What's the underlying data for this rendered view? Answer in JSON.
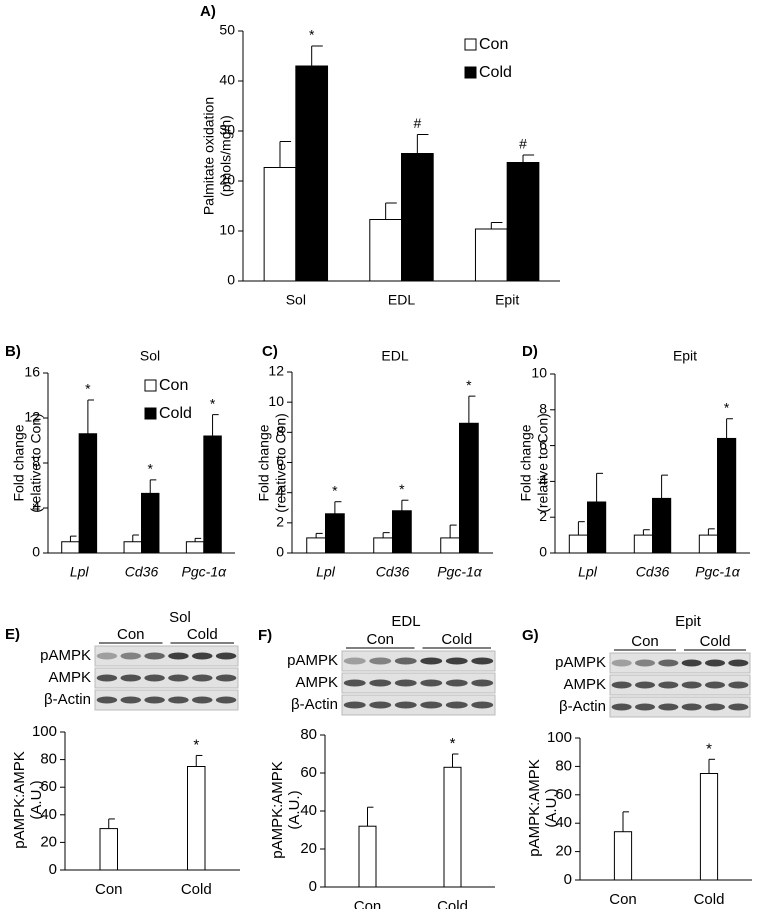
{
  "chart_data": [
    {
      "type": "bar",
      "label": "A)",
      "y_label": [
        "Palmitate oxidation",
        "(pmols/mg/h)"
      ],
      "categories": [
        "Sol",
        "EDL",
        "Epit"
      ],
      "series": [
        {
          "name": "Con",
          "color": "#ffffff",
          "values": [
            22.7,
            12.3,
            10.4
          ],
          "errors": [
            5.2,
            3.3,
            1.3
          ]
        },
        {
          "name": "Cold",
          "color": "#000000",
          "values": [
            43,
            25.5,
            23.7
          ],
          "errors": [
            4,
            3.8,
            1.5
          ],
          "annotations": [
            "*",
            "#",
            "#"
          ]
        }
      ],
      "ylim": [
        0,
        50
      ],
      "yticks": [
        0,
        10,
        20,
        30,
        40,
        50
      ],
      "legend": "top-right"
    },
    {
      "type": "bar",
      "label": "B)",
      "title": "Sol",
      "y_label": [
        "Fold change",
        "(relative to Con)"
      ],
      "categories": [
        "Lpl",
        "Cd36",
        "Pgc-1α"
      ],
      "category_style": "italic",
      "series": [
        {
          "name": "Con",
          "color": "#ffffff",
          "values": [
            1,
            1,
            1
          ],
          "errors": [
            0.5,
            0.6,
            0.3
          ]
        },
        {
          "name": "Cold",
          "color": "#000000",
          "values": [
            10.6,
            5.3,
            10.4
          ],
          "errors": [
            3,
            1.2,
            1.9
          ],
          "annotations": [
            "*",
            "*",
            "*"
          ]
        }
      ],
      "ylim": [
        0,
        16
      ],
      "yticks": [
        0,
        4,
        8,
        12,
        16
      ],
      "legend": "top-right"
    },
    {
      "type": "bar",
      "label": "C)",
      "title": "EDL",
      "y_label": [
        "Fold change",
        "(relative to Con)"
      ],
      "categories": [
        "Lpl",
        "Cd36",
        "Pgc-1α"
      ],
      "category_style": "italic",
      "series": [
        {
          "color": "#ffffff",
          "values": [
            1,
            1,
            1
          ],
          "errors": [
            0.3,
            0.35,
            0.85
          ]
        },
        {
          "color": "#000000",
          "values": [
            2.6,
            2.8,
            8.6
          ],
          "errors": [
            0.8,
            0.7,
            1.8
          ],
          "annotations": [
            "*",
            "*",
            "*"
          ]
        }
      ],
      "ylim": [
        0,
        12
      ],
      "yticks": [
        0,
        2,
        4,
        6,
        8,
        10,
        12
      ]
    },
    {
      "type": "bar",
      "label": "D)",
      "title": "Epit",
      "y_label": [
        "Fold change",
        "(relative to Con)"
      ],
      "categories": [
        "Lpl",
        "Cd36",
        "Pgc-1α"
      ],
      "category_style": "italic",
      "series": [
        {
          "color": "#ffffff",
          "values": [
            1,
            1,
            1
          ],
          "errors": [
            0.75,
            0.3,
            0.35
          ]
        },
        {
          "color": "#000000",
          "values": [
            2.85,
            3.05,
            6.4
          ],
          "errors": [
            1.6,
            1.3,
            1.1
          ],
          "annotations": [
            null,
            null,
            "*"
          ]
        }
      ],
      "ylim": [
        0,
        10
      ],
      "yticks": [
        0,
        2,
        4,
        6,
        8,
        10
      ]
    },
    {
      "type": "bar",
      "label": "E)",
      "title": "Sol",
      "blot": {
        "rows": [
          "pAMPK",
          "AMPK",
          "β-Actin"
        ],
        "groups": [
          "Con",
          "Cold"
        ]
      },
      "y_label": [
        "pAMPK:AMPK",
        "(A.U.)"
      ],
      "categories": [
        "Con",
        "Cold"
      ],
      "series": [
        {
          "color": "#ffffff",
          "values": [
            30,
            75
          ],
          "errors": [
            7,
            8
          ],
          "annotations": [
            null,
            "*"
          ]
        }
      ],
      "ylim": [
        0,
        100
      ],
      "yticks": [
        0,
        20,
        40,
        60,
        80,
        100
      ]
    },
    {
      "type": "bar",
      "label": "F)",
      "title": "EDL",
      "blot": {
        "rows": [
          "pAMPK",
          "AMPK",
          "β-Actin"
        ],
        "groups": [
          "Con",
          "Cold"
        ]
      },
      "y_label": [
        "pAMPK:AMPK",
        "(A.U.)"
      ],
      "categories": [
        "Con",
        "Cold"
      ],
      "series": [
        {
          "color": "#ffffff",
          "values": [
            32,
            63
          ],
          "errors": [
            10,
            7
          ],
          "annotations": [
            null,
            "*"
          ]
        }
      ],
      "ylim": [
        0,
        80
      ],
      "yticks": [
        0,
        20,
        40,
        60,
        80
      ]
    },
    {
      "type": "bar",
      "label": "G)",
      "title": "Epit",
      "blot": {
        "rows": [
          "pAMPK",
          "AMPK",
          "β-Actin"
        ],
        "groups": [
          "Con",
          "Cold"
        ]
      },
      "y_label": [
        "pAMPK:AMPK",
        "(A.U.)"
      ],
      "categories": [
        "Con",
        "Cold"
      ],
      "series": [
        {
          "color": "#ffffff",
          "values": [
            34,
            75
          ],
          "errors": [
            14,
            10
          ],
          "annotations": [
            null,
            "*"
          ]
        }
      ],
      "ylim": [
        0,
        100
      ],
      "yticks": [
        0,
        20,
        40,
        60,
        80,
        100
      ]
    }
  ]
}
